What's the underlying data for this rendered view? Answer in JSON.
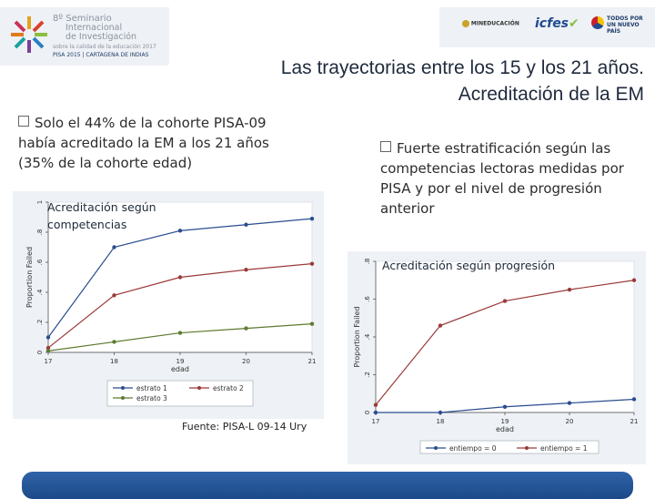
{
  "header": {
    "logo_lines": [
      "8º Seminario",
      "Internacional",
      "de Investigación",
      "sobre la calidad de la educación 2017"
    ],
    "logo_sub": "PISA 2015 | CARTAGENA DE INDIAS",
    "partners": [
      "MINEDUCACIÓN",
      "icfes",
      "TODOS POR UN NUEVO PAÍS"
    ]
  },
  "slide": {
    "title_line1": "Las trayectorias entre los 15 y los 21 años.",
    "title_line2": "Acreditación de la EM",
    "bullet_left": "Solo el 44% de la cohorte PISA-09 había acreditado la EM a los 21 años (35% de la cohorte edad)",
    "bullet_right": "Fuerte estratificación según las competencias lectoras medidas por PISA y por el nivel de progresión anterior",
    "label_left": "Acreditación según competencias",
    "label_right": "Acreditación según progresión",
    "source": "Fuente: PISA-L 09-14 Ury"
  },
  "chart_data": [
    {
      "type": "line",
      "title": "Acreditación según competencias",
      "xlabel": "edad",
      "ylabel": "Proportion Failed",
      "x": [
        17,
        18,
        19,
        20,
        21
      ],
      "xlim": [
        17,
        21
      ],
      "ylim": [
        0,
        1
      ],
      "yticks": [
        "0",
        ".2",
        ".4",
        ".6",
        ".8",
        "1"
      ],
      "xticks": [
        "17",
        "18",
        "19",
        "20",
        "21"
      ],
      "colors": [
        "#2a4d8f",
        "#9b3a3a",
        "#5d7a2e"
      ],
      "legend": [
        "estrato 1",
        "estrato 2",
        "estrato 3"
      ],
      "series": [
        {
          "name": "estrato 1",
          "values": [
            0.1,
            0.7,
            0.81,
            0.85,
            0.89
          ]
        },
        {
          "name": "estrato 2",
          "values": [
            0.03,
            0.38,
            0.5,
            0.55,
            0.59
          ]
        },
        {
          "name": "estrato 3",
          "values": [
            0.01,
            0.07,
            0.13,
            0.16,
            0.19
          ]
        }
      ]
    },
    {
      "type": "line",
      "title": "Acreditación según progresión",
      "xlabel": "edad",
      "ylabel": "Proportion Failed",
      "x": [
        17,
        18,
        19,
        20,
        21
      ],
      "xlim": [
        17,
        21
      ],
      "ylim": [
        0,
        0.8
      ],
      "yticks": [
        "0",
        ".2",
        ".4",
        ".6",
        ".8"
      ],
      "xticks": [
        "17",
        "18",
        "19",
        "20",
        "21"
      ],
      "colors": [
        "#2a4d8f",
        "#9b3a3a"
      ],
      "legend": [
        "entiempo = 0",
        "entiempo = 1"
      ],
      "series": [
        {
          "name": "entiempo = 0",
          "values": [
            0.0,
            0.0,
            0.03,
            0.05,
            0.07
          ]
        },
        {
          "name": "entiempo = 1",
          "values": [
            0.04,
            0.46,
            0.59,
            0.65,
            0.7
          ]
        }
      ]
    }
  ]
}
